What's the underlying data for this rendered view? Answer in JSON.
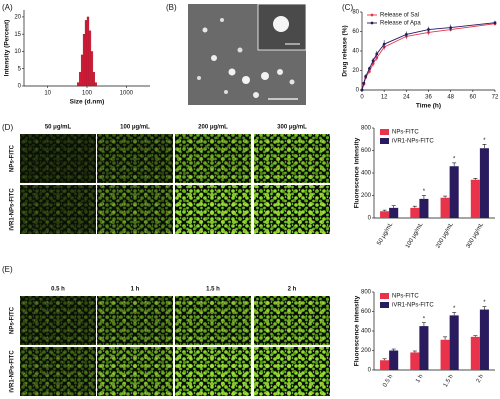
{
  "panel_labels": [
    "(A)",
    "(B)",
    "(C)",
    "(D)",
    "(E)"
  ],
  "micrographs": [
    {
      "column_labels": [
        "50 μg/mL",
        "100 μg/mL",
        "200 μg/mL",
        "300 μg/mL"
      ],
      "row_labels": [
        "NPs-FITC",
        "iVR1-NPs-FITC"
      ]
    },
    {
      "column_labels": [
        "0.5 h",
        "1 h",
        "1.5 h",
        "2 h"
      ],
      "row_labels": [
        "NPs-FITC",
        "iVR1-NPs-FITC"
      ]
    }
  ],
  "chart_data": [
    {
      "type": "histogram",
      "xlabel": "Size (d.nm)",
      "ylabel": "Intensity (Percent)",
      "xscale": "log",
      "bins": [
        56.2,
        63.1,
        70.8,
        79.4,
        89.1,
        100,
        112.2,
        125.9,
        141.3,
        158.5,
        177.8
      ],
      "values": [
        1,
        4,
        9,
        15,
        19,
        20,
        16,
        10,
        4,
        1
      ],
      "color": "#d81e3a",
      "xlim": [
        2.5,
        4000
      ],
      "xticks": [
        10,
        100,
        1000
      ],
      "ylim": [
        0,
        22
      ],
      "yticks": [
        0,
        5,
        10,
        15,
        20
      ]
    },
    {
      "type": "line",
      "xlabel": "Time (h)",
      "ylabel": "Drug release (%)",
      "legend": "upper-left",
      "x": [
        0,
        1,
        2,
        4,
        6,
        8,
        12,
        24,
        36,
        48,
        72
      ],
      "series": [
        {
          "name": "Release of Sal",
          "color": "#e8334a",
          "values": [
            0,
            6,
            13,
            19,
            27,
            33,
            44,
            55,
            59,
            62,
            68
          ],
          "errors": [
            0,
            1,
            2,
            2,
            3,
            3,
            3,
            3,
            3,
            2,
            2
          ]
        },
        {
          "name": "Release of Apa",
          "color": "#2a1a5e",
          "values": [
            0,
            7,
            14,
            22,
            30,
            37,
            47,
            57,
            62,
            64,
            69
          ],
          "errors": [
            0,
            1,
            2,
            2,
            3,
            3,
            4,
            3,
            3,
            3,
            2
          ]
        }
      ],
      "xlim": [
        0,
        72
      ],
      "xticks": [
        0,
        12,
        24,
        36,
        48,
        60,
        72
      ],
      "ylim": [
        0,
        80
      ],
      "yticks": [
        0,
        20,
        40,
        60,
        80
      ]
    },
    {
      "type": "bar",
      "ylabel": "Fluorescence intensity",
      "legend": "upper-left",
      "categories": [
        "50 μg/mL",
        "100 μg/mL",
        "200 μg/mL",
        "300 μg/mL"
      ],
      "series": [
        {
          "name": "NPs-FITC",
          "color": "#e8334a",
          "values": [
            60,
            90,
            180,
            340
          ],
          "errors": [
            10,
            15,
            15,
            12
          ]
        },
        {
          "name": "iVR1-NPs-FITC",
          "color": "#2a1a5e",
          "values": [
            90,
            170,
            460,
            620
          ],
          "errors": [
            20,
            30,
            30,
            35
          ]
        }
      ],
      "annotations": [
        {
          "text": "*",
          "category": "100 μg/mL",
          "series": "iVR1-NPs-FITC"
        },
        {
          "text": "*",
          "category": "200 μg/mL",
          "series": "iVR1-NPs-FITC"
        },
        {
          "text": "*",
          "category": "300 μg/mL",
          "series": "iVR1-NPs-FITC"
        }
      ],
      "ylim": [
        0,
        800
      ],
      "yticks": [
        0,
        200,
        400,
        600,
        800
      ]
    },
    {
      "type": "bar",
      "ylabel": "Fluorescence intensity",
      "legend": "upper-left",
      "categories": [
        "0.5 h",
        "1 h",
        "1.5 h",
        "2 h"
      ],
      "series": [
        {
          "name": "NPs-FITC",
          "color": "#e8334a",
          "values": [
            100,
            180,
            310,
            340
          ],
          "errors": [
            15,
            15,
            30,
            12
          ]
        },
        {
          "name": "iVR1-NPs-FITC",
          "color": "#2a1a5e",
          "values": [
            200,
            450,
            560,
            620
          ],
          "errors": [
            15,
            35,
            30,
            30
          ]
        }
      ],
      "annotations": [
        {
          "text": "*",
          "category": "1 h",
          "series": "iVR1-NPs-FITC"
        },
        {
          "text": "*",
          "category": "1.5 h",
          "series": "iVR1-NPs-FITC"
        },
        {
          "text": "*",
          "category": "2 h",
          "series": "iVR1-NPs-FITC"
        }
      ],
      "ylim": [
        0,
        800
      ],
      "yticks": [
        0,
        200,
        400,
        600,
        800
      ]
    }
  ]
}
